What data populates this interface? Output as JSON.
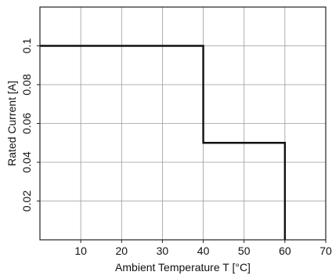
{
  "chart_data": {
    "type": "line",
    "title": "",
    "xlabel": "Ambient Temperature T [°C]",
    "ylabel": "Rated Current [A]",
    "xlim": [
      0,
      70
    ],
    "ylim": [
      0,
      0.12
    ],
    "grid": true,
    "x_ticks": [
      10,
      20,
      30,
      40,
      50,
      60,
      70
    ],
    "x_tick_labels": [
      "10",
      "20",
      "30",
      "40",
      "50",
      "60",
      "70"
    ],
    "y_ticks": [
      0.02,
      0.04,
      0.06,
      0.08,
      0.1
    ],
    "y_tick_labels": [
      "0.02",
      "0.04",
      "0.06",
      "0.08",
      "0.1"
    ],
    "series": [
      {
        "x": [
          0,
          40,
          40,
          60,
          60
        ],
        "y": [
          0.1,
          0.1,
          0.05,
          0.05,
          0
        ]
      }
    ],
    "colors": {
      "line": "#111111",
      "grid": "#9a9a9a",
      "frame": "#222222"
    }
  }
}
